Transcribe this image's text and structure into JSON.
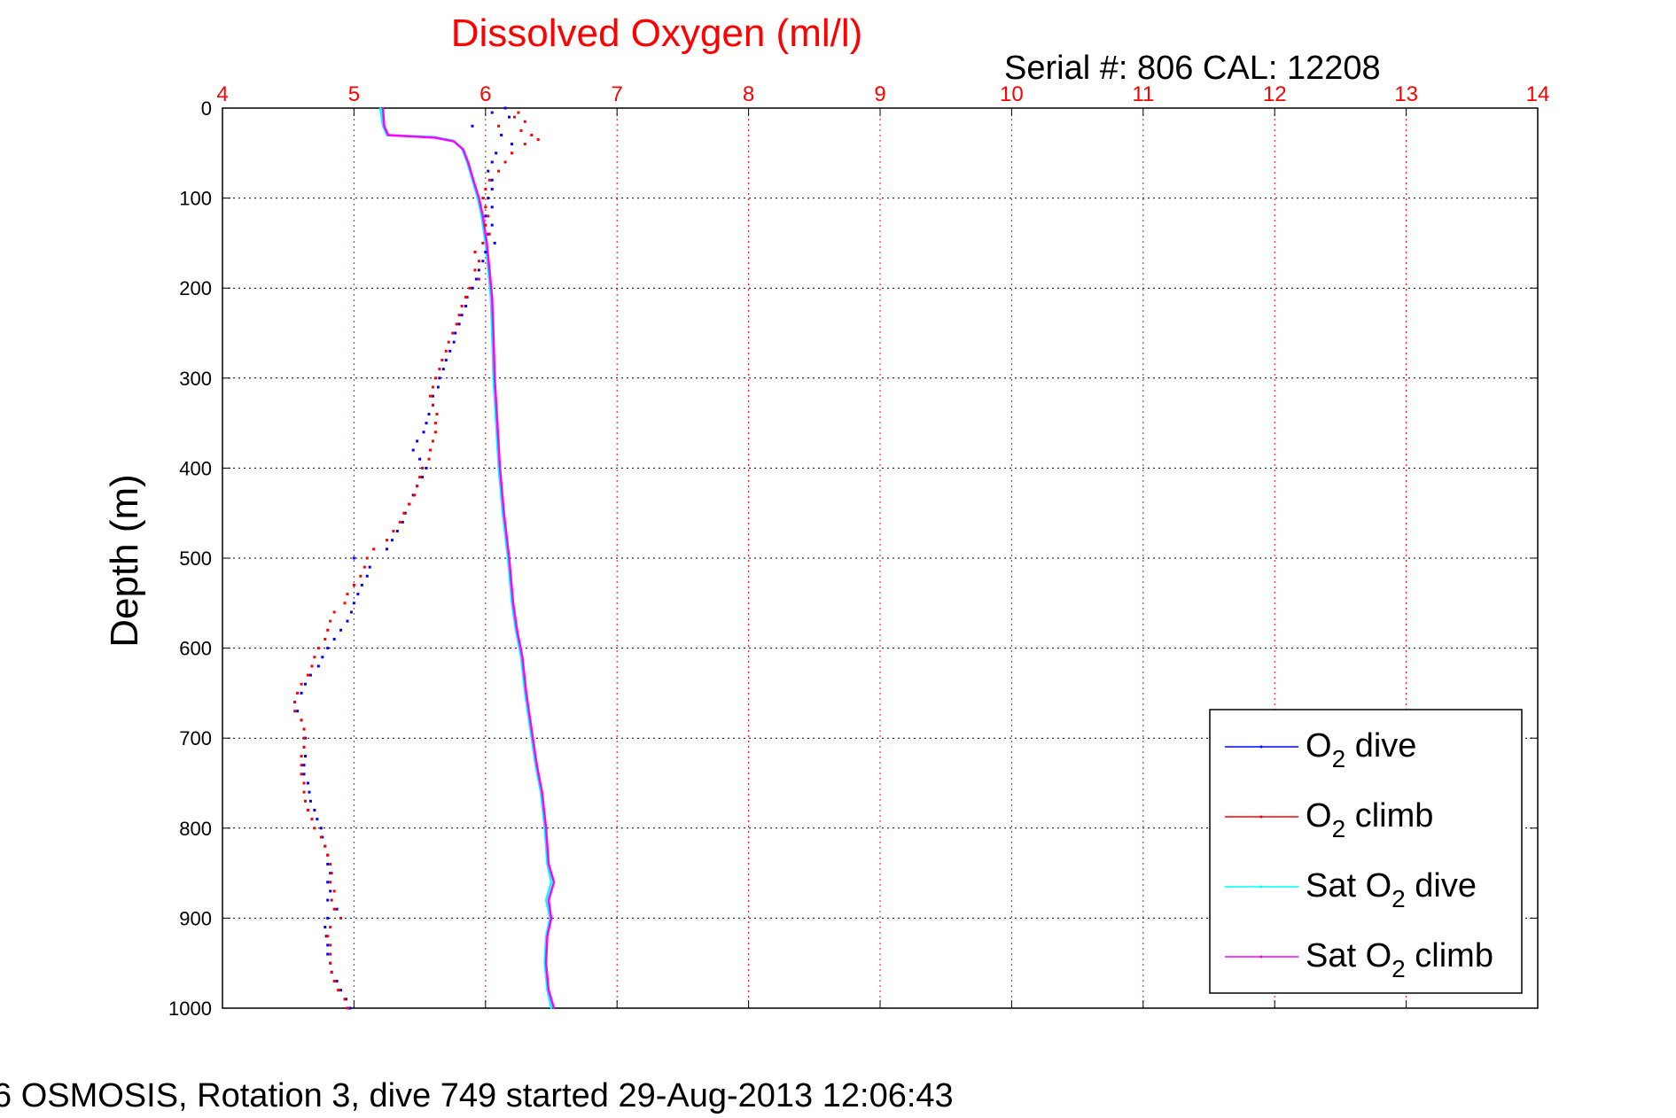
{
  "chart_data": {
    "type": "line",
    "title": "Dissolved Oxygen (ml/l)",
    "subtitle": "Serial #: 806  CAL: 12208",
    "footer": "6 OSMOSIS, Rotation 3, dive 749 started 29-Aug-2013 12:06:43",
    "xlabel": "",
    "ylabel": "Depth (m)",
    "xlim": [
      4,
      14
    ],
    "ylim": [
      0,
      1000
    ],
    "y_reversed": true,
    "x_axis_position": "top",
    "grid": true,
    "x_ticks": [
      "4",
      "5",
      "6",
      "7",
      "8",
      "9",
      "10",
      "11",
      "12",
      "13",
      "14"
    ],
    "y_ticks": [
      "0",
      "100",
      "200",
      "300",
      "400",
      "500",
      "600",
      "700",
      "800",
      "900",
      "1000"
    ],
    "colors": {
      "title": "#ff0000",
      "x_ticks": "#ff0000",
      "grid_vertical": "#ff0000",
      "grid_horizontal": "#000000",
      "o2_dive": "#0000ff",
      "o2_climb": "#ff0000",
      "sat_dive": "#00ffff",
      "sat_climb": "#ff00ff"
    },
    "legend": {
      "placement": "bottom-right",
      "entries": [
        {
          "pre": "O",
          "sub": "2",
          "post": " dive",
          "series": "o2_dive"
        },
        {
          "pre": "O",
          "sub": "2",
          "post": " climb",
          "series": "o2_climb"
        },
        {
          "pre": "Sat O",
          "sub": "2",
          "post": " dive",
          "series": "sat_dive"
        },
        {
          "pre": "Sat O",
          "sub": "2",
          "post": " climb",
          "series": "sat_climb"
        }
      ]
    },
    "series": [
      {
        "name": "O2 dive",
        "key": "o2_dive",
        "style": "dots",
        "points": [
          [
            6.15,
            0
          ],
          [
            6.05,
            5
          ],
          [
            6.18,
            10
          ],
          [
            5.9,
            20
          ],
          [
            6.12,
            30
          ],
          [
            6.2,
            40
          ],
          [
            6.08,
            50
          ],
          [
            6.05,
            60
          ],
          [
            6.02,
            70
          ],
          [
            6.05,
            80
          ],
          [
            6.05,
            90
          ],
          [
            6.02,
            100
          ],
          [
            6.05,
            110
          ],
          [
            6.0,
            120
          ],
          [
            6.05,
            130
          ],
          [
            6.02,
            140
          ],
          [
            6.07,
            150
          ],
          [
            6.0,
            160
          ],
          [
            5.98,
            170
          ],
          [
            5.95,
            180
          ],
          [
            5.93,
            190
          ],
          [
            5.9,
            200
          ],
          [
            5.86,
            210
          ],
          [
            5.85,
            220
          ],
          [
            5.82,
            230
          ],
          [
            5.8,
            240
          ],
          [
            5.77,
            250
          ],
          [
            5.76,
            260
          ],
          [
            5.73,
            270
          ],
          [
            5.7,
            280
          ],
          [
            5.68,
            290
          ],
          [
            5.65,
            300
          ],
          [
            5.64,
            310
          ],
          [
            5.6,
            320
          ],
          [
            5.6,
            330
          ],
          [
            5.57,
            340
          ],
          [
            5.55,
            350
          ],
          [
            5.53,
            360
          ],
          [
            5.48,
            370
          ],
          [
            5.45,
            380
          ],
          [
            5.5,
            390
          ],
          [
            5.55,
            400
          ],
          [
            5.52,
            410
          ],
          [
            5.48,
            420
          ],
          [
            5.45,
            430
          ],
          [
            5.42,
            440
          ],
          [
            5.39,
            450
          ],
          [
            5.37,
            460
          ],
          [
            5.33,
            470
          ],
          [
            5.29,
            480
          ],
          [
            5.25,
            490
          ],
          [
            5.0,
            500
          ],
          [
            5.12,
            510
          ],
          [
            5.1,
            520
          ],
          [
            5.06,
            530
          ],
          [
            5.03,
            540
          ],
          [
            5.0,
            550
          ],
          [
            4.98,
            560
          ],
          [
            4.95,
            570
          ],
          [
            4.9,
            580
          ],
          [
            4.85,
            590
          ],
          [
            4.8,
            600
          ],
          [
            4.76,
            610
          ],
          [
            4.73,
            620
          ],
          [
            4.67,
            630
          ],
          [
            4.63,
            640
          ],
          [
            4.6,
            650
          ],
          [
            4.55,
            660
          ],
          [
            4.57,
            670
          ],
          [
            4.6,
            680
          ],
          [
            4.62,
            690
          ],
          [
            4.63,
            700
          ],
          [
            4.62,
            710
          ],
          [
            4.63,
            720
          ],
          [
            4.62,
            730
          ],
          [
            4.62,
            740
          ],
          [
            4.65,
            750
          ],
          [
            4.66,
            760
          ],
          [
            4.67,
            770
          ],
          [
            4.7,
            780
          ],
          [
            4.72,
            790
          ],
          [
            4.75,
            800
          ],
          [
            4.76,
            810
          ],
          [
            4.78,
            820
          ],
          [
            4.8,
            830
          ],
          [
            4.8,
            840
          ],
          [
            4.82,
            850
          ],
          [
            4.8,
            860
          ],
          [
            4.82,
            870
          ],
          [
            4.8,
            880
          ],
          [
            4.87,
            890
          ],
          [
            4.8,
            900
          ],
          [
            4.78,
            910
          ],
          [
            4.79,
            920
          ],
          [
            4.8,
            930
          ],
          [
            4.8,
            940
          ],
          [
            4.82,
            950
          ],
          [
            4.83,
            960
          ],
          [
            4.87,
            970
          ],
          [
            4.9,
            980
          ],
          [
            4.94,
            990
          ],
          [
            4.97,
            1000
          ]
        ]
      },
      {
        "name": "O2 climb",
        "key": "o2_climb",
        "style": "dots",
        "points": [
          [
            6.25,
            5
          ],
          [
            6.22,
            10
          ],
          [
            6.3,
            15
          ],
          [
            6.1,
            20
          ],
          [
            6.27,
            25
          ],
          [
            6.35,
            30
          ],
          [
            6.4,
            35
          ],
          [
            6.3,
            40
          ],
          [
            6.2,
            50
          ],
          [
            6.15,
            60
          ],
          [
            6.1,
            70
          ],
          [
            6.03,
            80
          ],
          [
            6.0,
            90
          ],
          [
            5.98,
            100
          ],
          [
            6.0,
            110
          ],
          [
            6.02,
            120
          ],
          [
            6.0,
            130
          ],
          [
            6.03,
            140
          ],
          [
            5.98,
            150
          ],
          [
            5.92,
            160
          ],
          [
            5.95,
            170
          ],
          [
            5.92,
            180
          ],
          [
            5.95,
            190
          ],
          [
            5.88,
            200
          ],
          [
            5.85,
            210
          ],
          [
            5.82,
            220
          ],
          [
            5.8,
            230
          ],
          [
            5.78,
            240
          ],
          [
            5.75,
            250
          ],
          [
            5.72,
            260
          ],
          [
            5.7,
            270
          ],
          [
            5.67,
            280
          ],
          [
            5.65,
            290
          ],
          [
            5.62,
            300
          ],
          [
            5.6,
            310
          ],
          [
            5.58,
            320
          ],
          [
            5.6,
            330
          ],
          [
            5.63,
            340
          ],
          [
            5.62,
            350
          ],
          [
            5.62,
            360
          ],
          [
            5.6,
            370
          ],
          [
            5.58,
            380
          ],
          [
            5.57,
            390
          ],
          [
            5.52,
            400
          ],
          [
            5.5,
            410
          ],
          [
            5.48,
            420
          ],
          [
            5.46,
            430
          ],
          [
            5.42,
            440
          ],
          [
            5.38,
            450
          ],
          [
            5.35,
            460
          ],
          [
            5.3,
            470
          ],
          [
            5.25,
            480
          ],
          [
            5.15,
            490
          ],
          [
            5.1,
            500
          ],
          [
            5.08,
            510
          ],
          [
            5.05,
            520
          ],
          [
            5.0,
            530
          ],
          [
            4.95,
            540
          ],
          [
            4.93,
            550
          ],
          [
            4.85,
            560
          ],
          [
            4.82,
            570
          ],
          [
            4.8,
            580
          ],
          [
            4.78,
            590
          ],
          [
            4.73,
            600
          ],
          [
            4.7,
            610
          ],
          [
            4.68,
            620
          ],
          [
            4.65,
            630
          ],
          [
            4.6,
            640
          ],
          [
            4.57,
            650
          ],
          [
            4.55,
            660
          ],
          [
            4.55,
            670
          ],
          [
            4.6,
            680
          ],
          [
            4.62,
            690
          ],
          [
            4.62,
            700
          ],
          [
            4.62,
            710
          ],
          [
            4.6,
            720
          ],
          [
            4.6,
            730
          ],
          [
            4.6,
            740
          ],
          [
            4.62,
            750
          ],
          [
            4.62,
            760
          ],
          [
            4.63,
            770
          ],
          [
            4.65,
            780
          ],
          [
            4.68,
            790
          ],
          [
            4.7,
            800
          ],
          [
            4.75,
            810
          ],
          [
            4.78,
            820
          ],
          [
            4.8,
            830
          ],
          [
            4.82,
            840
          ],
          [
            4.83,
            850
          ],
          [
            4.82,
            860
          ],
          [
            4.85,
            870
          ],
          [
            4.83,
            880
          ],
          [
            4.85,
            890
          ],
          [
            4.9,
            900
          ],
          [
            4.82,
            910
          ],
          [
            4.8,
            920
          ],
          [
            4.82,
            930
          ],
          [
            4.82,
            940
          ],
          [
            4.82,
            950
          ],
          [
            4.83,
            960
          ],
          [
            4.85,
            970
          ],
          [
            4.88,
            980
          ],
          [
            4.93,
            990
          ],
          [
            4.95,
            1000
          ]
        ]
      },
      {
        "name": "Sat O2 dive",
        "key": "sat_dive",
        "style": "line",
        "points": [
          [
            5.2,
            0
          ],
          [
            5.22,
            20
          ],
          [
            5.25,
            30
          ],
          [
            5.6,
            32
          ],
          [
            5.75,
            36
          ],
          [
            5.82,
            45
          ],
          [
            5.86,
            60
          ],
          [
            5.9,
            80
          ],
          [
            5.94,
            100
          ],
          [
            5.97,
            120
          ],
          [
            6.0,
            150
          ],
          [
            6.02,
            180
          ],
          [
            6.04,
            210
          ],
          [
            6.05,
            250
          ],
          [
            6.06,
            300
          ],
          [
            6.08,
            350
          ],
          [
            6.1,
            400
          ],
          [
            6.13,
            450
          ],
          [
            6.17,
            500
          ],
          [
            6.2,
            550
          ],
          [
            6.23,
            580
          ],
          [
            6.27,
            610
          ],
          [
            6.3,
            650
          ],
          [
            6.35,
            700
          ],
          [
            6.38,
            730
          ],
          [
            6.42,
            760
          ],
          [
            6.45,
            800
          ],
          [
            6.47,
            840
          ],
          [
            6.5,
            860
          ],
          [
            6.46,
            880
          ],
          [
            6.49,
            900
          ],
          [
            6.46,
            920
          ],
          [
            6.45,
            950
          ],
          [
            6.47,
            980
          ],
          [
            6.5,
            1000
          ]
        ]
      },
      {
        "name": "Sat O2 climb",
        "key": "sat_climb",
        "style": "line",
        "points": [
          [
            5.22,
            0
          ],
          [
            5.23,
            20
          ],
          [
            5.26,
            30
          ],
          [
            5.62,
            33
          ],
          [
            5.76,
            37
          ],
          [
            5.83,
            46
          ],
          [
            5.87,
            61
          ],
          [
            5.91,
            81
          ],
          [
            5.95,
            100
          ],
          [
            5.98,
            120
          ],
          [
            6.01,
            150
          ],
          [
            6.03,
            180
          ],
          [
            6.05,
            210
          ],
          [
            6.06,
            250
          ],
          [
            6.07,
            300
          ],
          [
            6.09,
            350
          ],
          [
            6.11,
            400
          ],
          [
            6.14,
            450
          ],
          [
            6.18,
            500
          ],
          [
            6.21,
            550
          ],
          [
            6.24,
            580
          ],
          [
            6.28,
            610
          ],
          [
            6.31,
            650
          ],
          [
            6.36,
            700
          ],
          [
            6.39,
            730
          ],
          [
            6.43,
            760
          ],
          [
            6.46,
            800
          ],
          [
            6.48,
            840
          ],
          [
            6.52,
            860
          ],
          [
            6.48,
            880
          ],
          [
            6.5,
            900
          ],
          [
            6.47,
            920
          ],
          [
            6.46,
            950
          ],
          [
            6.48,
            980
          ],
          [
            6.52,
            1000
          ]
        ]
      }
    ]
  }
}
